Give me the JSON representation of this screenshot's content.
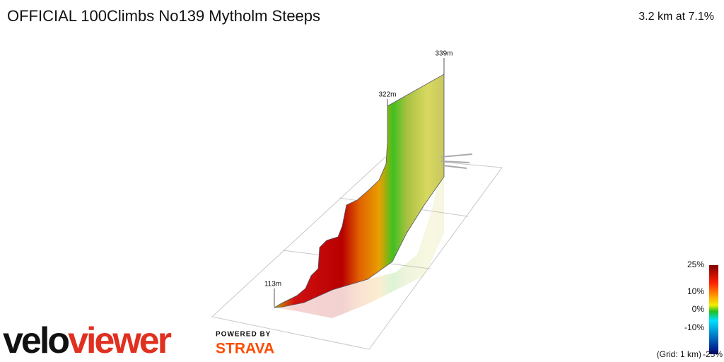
{
  "header": {
    "title": "OFFICIAL 100Climbs No139 Mytholm Steeps",
    "summary": "3.2 km at 7.1%"
  },
  "profile": {
    "labels": [
      "339m",
      "322m",
      "113m"
    ]
  },
  "legend": {
    "ticks": [
      "25%",
      "10%",
      "0%",
      "-10%",
      "-25%"
    ],
    "grid_note": "(Grid: 1 km)"
  },
  "branding": {
    "logo_left": "velo",
    "logo_right": "viewer",
    "powered_by": "POWERED BY",
    "partner": "STRAVA"
  }
}
